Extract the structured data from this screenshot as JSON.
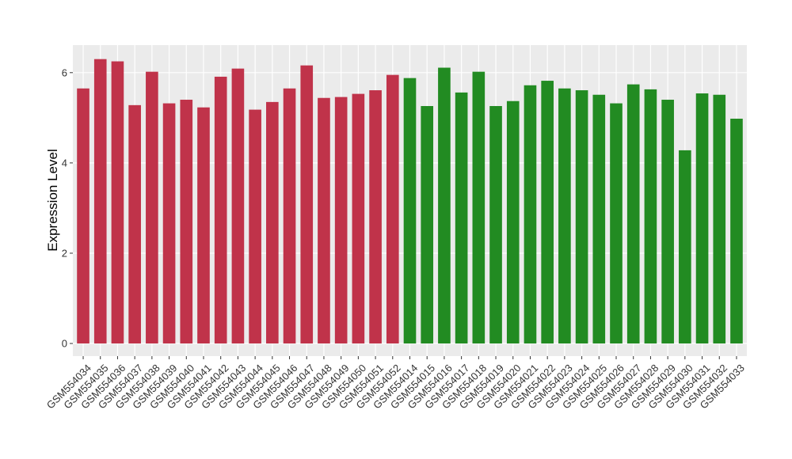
{
  "chart_data": {
    "type": "bar",
    "y_label": "Expression Level",
    "categories": [
      "GSM554034",
      "GSM554035",
      "GSM554036",
      "GSM554037",
      "GSM554038",
      "GSM554039",
      "GSM554040",
      "GSM554041",
      "GSM554042",
      "GSM554043",
      "GSM554044",
      "GSM554045",
      "GSM554046",
      "GSM554047",
      "GSM554048",
      "GSM554049",
      "GSM554050",
      "GSM554051",
      "GSM554052",
      "GSM554014",
      "GSM554015",
      "GSM554016",
      "GSM554017",
      "GSM554018",
      "GSM554019",
      "GSM554020",
      "GSM554021",
      "GSM554022",
      "GSM554023",
      "GSM554024",
      "GSM554025",
      "GSM554026",
      "GSM554027",
      "GSM554028",
      "GSM554029",
      "GSM554030",
      "GSM554031",
      "GSM554032",
      "GSM554033"
    ],
    "values": [
      5.65,
      6.3,
      6.25,
      5.28,
      6.02,
      5.32,
      5.4,
      5.23,
      5.91,
      6.09,
      5.18,
      5.35,
      5.65,
      6.16,
      5.44,
      5.46,
      5.53,
      5.61,
      5.95,
      5.88,
      5.26,
      6.11,
      5.56,
      6.02,
      5.26,
      5.37,
      5.72,
      5.82,
      5.65,
      5.61,
      5.51,
      5.32,
      5.74,
      5.63,
      5.4,
      4.28,
      5.54,
      5.51,
      4.98
    ],
    "colors": [
      "#c0334a",
      "#c0334a",
      "#c0334a",
      "#c0334a",
      "#c0334a",
      "#c0334a",
      "#c0334a",
      "#c0334a",
      "#c0334a",
      "#c0334a",
      "#c0334a",
      "#c0334a",
      "#c0334a",
      "#c0334a",
      "#c0334a",
      "#c0334a",
      "#c0334a",
      "#c0334a",
      "#c0334a",
      "#228b22",
      "#228b22",
      "#228b22",
      "#228b22",
      "#228b22",
      "#228b22",
      "#228b22",
      "#228b22",
      "#228b22",
      "#228b22",
      "#228b22",
      "#228b22",
      "#228b22",
      "#228b22",
      "#228b22",
      "#228b22",
      "#228b22",
      "#228b22",
      "#228b22",
      "#228b22"
    ],
    "ylim": [
      -0.28,
      6.61
    ],
    "yticks": [
      0,
      2,
      4,
      6
    ],
    "grid": true
  }
}
